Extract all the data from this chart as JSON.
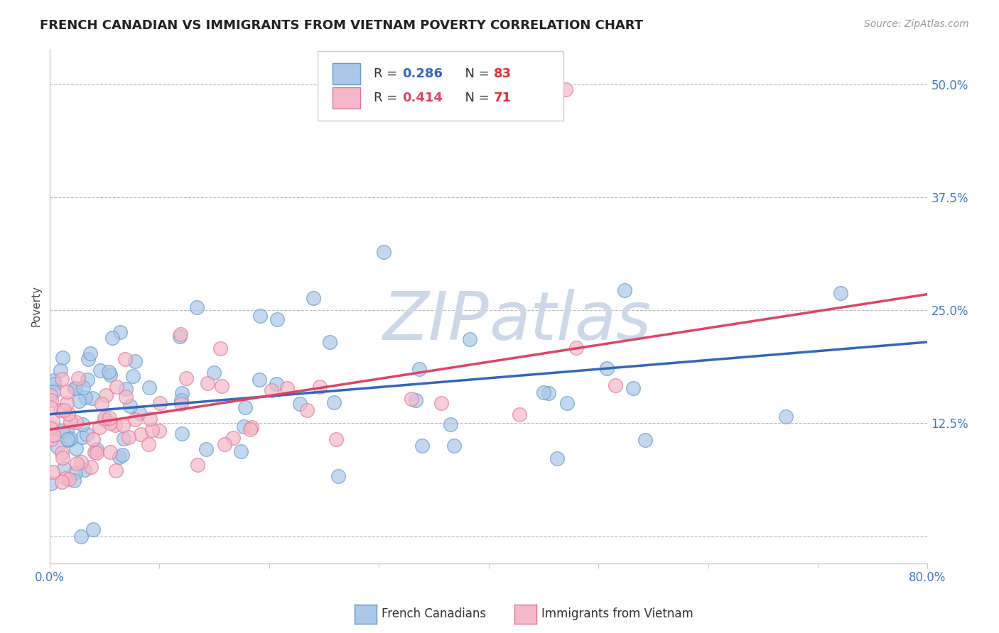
{
  "title": "FRENCH CANADIAN VS IMMIGRANTS FROM VIETNAM POVERTY CORRELATION CHART",
  "source": "Source: ZipAtlas.com",
  "ylabel": "Poverty",
  "xlim": [
    0.0,
    0.8
  ],
  "ylim": [
    -0.03,
    0.54
  ],
  "yticks": [
    0.0,
    0.125,
    0.25,
    0.375,
    0.5
  ],
  "ytick_labels": [
    "",
    "12.5%",
    "25.0%",
    "37.5%",
    "50.0%"
  ],
  "xticks": [
    0.0,
    0.1,
    0.2,
    0.3,
    0.4,
    0.5,
    0.6,
    0.7,
    0.8
  ],
  "xtick_labels": [
    "0.0%",
    "",
    "",
    "",
    "",
    "",
    "",
    "",
    "80.0%"
  ],
  "R_blue": 0.286,
  "N_blue": 83,
  "R_pink": 0.414,
  "N_pink": 71,
  "blue_scatter_color": "#aac8e8",
  "blue_edge_color": "#6699cc",
  "pink_scatter_color": "#f5b8c8",
  "pink_edge_color": "#dd7799",
  "blue_line_color": "#3366bb",
  "pink_line_color": "#dd4466",
  "legend_label_blue": "French Canadians",
  "legend_label_pink": "Immigrants from Vietnam",
  "title_fontsize": 13,
  "source_fontsize": 10,
  "axis_label_fontsize": 11,
  "tick_fontsize": 12,
  "tick_color": "#4477cc",
  "watermark_color": "#ccd8e8",
  "background_color": "#ffffff",
  "grid_color": "#bbbbbb",
  "blue_trend_start_y": 0.135,
  "blue_trend_end_y": 0.215,
  "pink_trend_start_y": 0.118,
  "pink_trend_end_y": 0.268
}
